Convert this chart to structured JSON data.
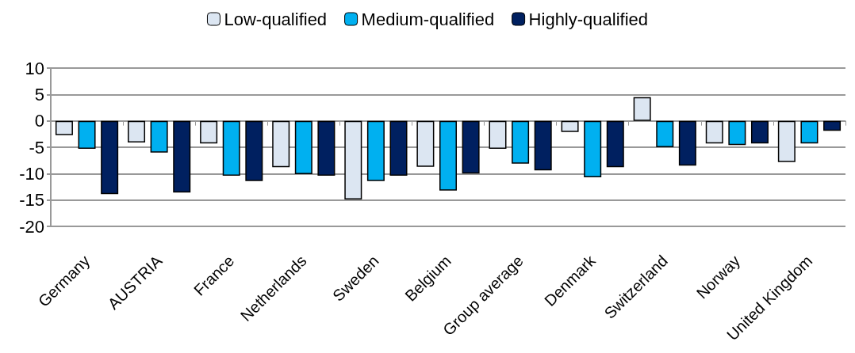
{
  "chart_data": {
    "type": "bar",
    "categories": [
      "Germany",
      "AUSTRIA",
      "France",
      "Netherlands",
      "Sweden",
      "Belgium",
      "Group average",
      "Denmark",
      "Switzerland",
      "Norway",
      "United Kingdom"
    ],
    "series": [
      {
        "name": "Low-qualified",
        "color": "#dce6f2",
        "values": [
          -2.7,
          -4.1,
          -4.3,
          -8.8,
          -14.9,
          -8.7,
          -5.3,
          -2.1,
          4.5,
          -4.3,
          -7.8
        ]
      },
      {
        "name": "Medium-qualified",
        "color": "#00b0f0",
        "values": [
          -5.3,
          -6.0,
          -10.4,
          -10.1,
          -11.4,
          -13.2,
          -8.1,
          -10.7,
          -5.0,
          -4.6,
          -4.3
        ]
      },
      {
        "name": "Highly-qualified",
        "color": "#002060",
        "values": [
          -13.9,
          -13.6,
          -11.4,
          -10.4,
          -10.4,
          -10.0,
          -9.4,
          -8.8,
          -8.5,
          -4.3,
          -1.9
        ]
      }
    ],
    "ylim": [
      -20,
      10
    ],
    "yticks": [
      -20,
      -15,
      -10,
      -5,
      0,
      5,
      10
    ],
    "grid": "y",
    "legend": "top"
  }
}
